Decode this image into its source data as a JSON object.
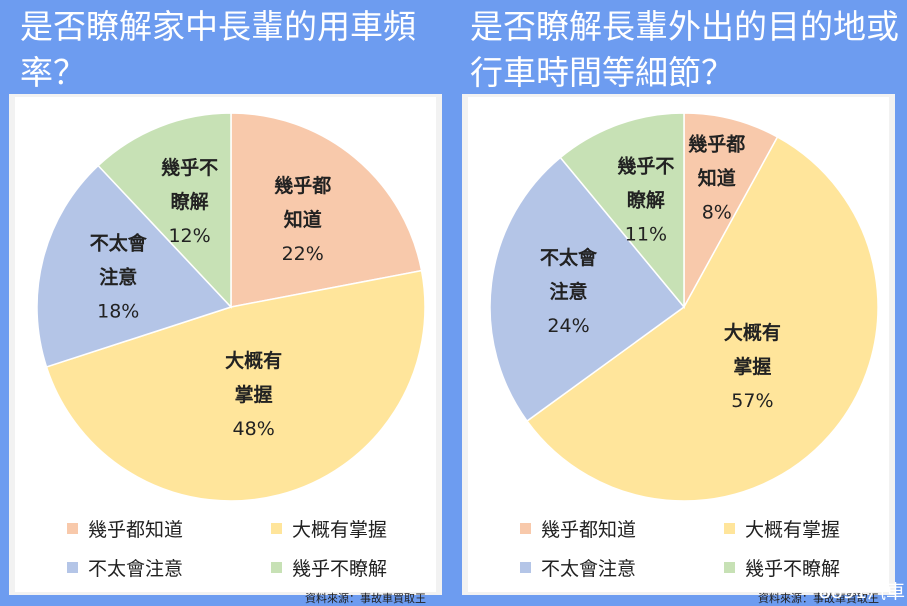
{
  "colors": {
    "background": "#6d9cf0",
    "slice_know_all": "#f8c9ab",
    "slice_mostly": "#ffe59b",
    "slice_not_careful": "#b4c5e7",
    "slice_hardly": "#c7e1b5"
  },
  "source_text": "資料來源：事故車買取王",
  "watermark": "8891汽車",
  "legend": [
    {
      "label": "幾乎都知道",
      "color_key": "slice_know_all"
    },
    {
      "label": "大概有掌握",
      "color_key": "slice_mostly"
    },
    {
      "label": "不太會注意",
      "color_key": "slice_not_careful"
    },
    {
      "label": "幾乎不瞭解",
      "color_key": "slice_hardly"
    }
  ],
  "chart_data": [
    {
      "type": "pie",
      "title": "是否瞭解家中長輩的用車頻率？",
      "slices": [
        {
          "label_lines": [
            "幾乎都",
            "知道"
          ],
          "value": 22,
          "value_text": "22%",
          "color_key": "slice_know_all"
        },
        {
          "label_lines": [
            "大概有",
            "掌握"
          ],
          "value": 48,
          "value_text": "48%",
          "color_key": "slice_mostly"
        },
        {
          "label_lines": [
            "不太會",
            "注意"
          ],
          "value": 18,
          "value_text": "18%",
          "color_key": "slice_not_careful"
        },
        {
          "label_lines": [
            "幾乎不",
            "瞭解"
          ],
          "value": 12,
          "value_text": "12%",
          "color_key": "slice_hardly"
        }
      ]
    },
    {
      "type": "pie",
      "title": "是否瞭解長輩外出的目的地或行車時間等細節？",
      "slices": [
        {
          "label_lines": [
            "幾乎都",
            "知道"
          ],
          "value": 8,
          "value_text": "8%",
          "color_key": "slice_know_all"
        },
        {
          "label_lines": [
            "大概有",
            "掌握"
          ],
          "value": 57,
          "value_text": "57%",
          "color_key": "slice_mostly"
        },
        {
          "label_lines": [
            "不太會",
            "注意"
          ],
          "value": 24,
          "value_text": "24%",
          "color_key": "slice_not_careful"
        },
        {
          "label_lines": [
            "幾乎不",
            "瞭解"
          ],
          "value": 11,
          "value_text": "11%",
          "color_key": "slice_hardly"
        }
      ]
    }
  ]
}
